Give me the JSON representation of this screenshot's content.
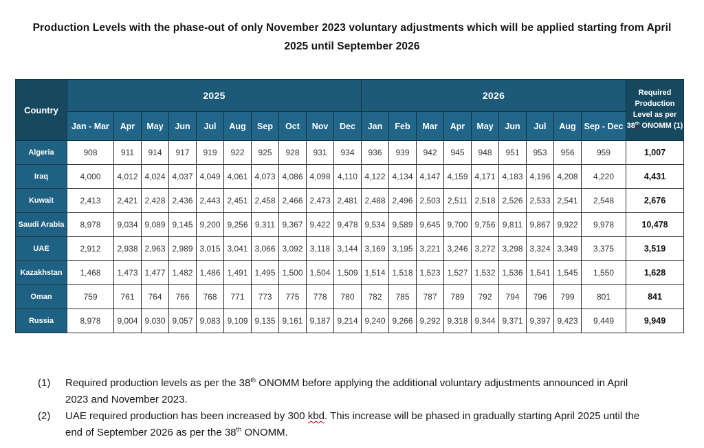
{
  "title": "Production Levels with the phase-out of only November 2023 voluntary adjustments which will be applied starting from April 2025 until September 2026",
  "colors": {
    "header_dark": "#16495f",
    "header_band": "#1d5a78",
    "header_month": "#216689",
    "row_label": "#1e6183",
    "squiggle": "#c00000"
  },
  "table": {
    "corner_label": "Country",
    "year_groups": [
      {
        "label": "2025",
        "months": [
          "Jan - Mar",
          "Apr",
          "May",
          "Jun",
          "Jul",
          "Aug",
          "Sep",
          "Oct",
          "Nov",
          "Dec"
        ]
      },
      {
        "label": "2026",
        "months": [
          "Jan",
          "Feb",
          "Mar",
          "Apr",
          "May",
          "Jun",
          "Jul",
          "Aug",
          "Sep - Dec"
        ]
      }
    ],
    "required_header_segments": [
      {
        "t": "Required Production Level as per "
      },
      {
        "t": "38"
      },
      {
        "t": "th",
        "s": "sup wavy"
      },
      {
        "t": " ONOMM (1)"
      }
    ],
    "rows": [
      {
        "country": "Algeria",
        "values": [
          "908",
          "911",
          "914",
          "917",
          "919",
          "922",
          "925",
          "928",
          "931",
          "934",
          "936",
          "939",
          "942",
          "945",
          "948",
          "951",
          "953",
          "956",
          "959"
        ],
        "required": "1,007"
      },
      {
        "country": "Iraq",
        "values": [
          "4,000",
          "4,012",
          "4,024",
          "4,037",
          "4,049",
          "4,061",
          "4,073",
          "4,086",
          "4,098",
          "4,110",
          "4,122",
          "4,134",
          "4,147",
          "4,159",
          "4,171",
          "4,183",
          "4,196",
          "4,208",
          "4,220"
        ],
        "required": "4,431"
      },
      {
        "country": "Kuwait",
        "values": [
          "2,413",
          "2,421",
          "2,428",
          "2,436",
          "2,443",
          "2,451",
          "2,458",
          "2,466",
          "2,473",
          "2,481",
          "2,488",
          "2,496",
          "2,503",
          "2,511",
          "2,518",
          "2,526",
          "2,533",
          "2,541",
          "2,548"
        ],
        "required": "2,676"
      },
      {
        "country": "Saudi Arabia",
        "values": [
          "8,978",
          "9,034",
          "9,089",
          "9,145",
          "9,200",
          "9,256",
          "9,311",
          "9,367",
          "9,422",
          "9,478",
          "9,534",
          "9,589",
          "9,645",
          "9,700",
          "9,756",
          "9,811",
          "9,867",
          "9,922",
          "9,978"
        ],
        "required": "10,478"
      },
      {
        "country": "UAE",
        "values": [
          "2,912",
          "2,938",
          "2,963",
          "2,989",
          "3,015",
          "3,041",
          "3,066",
          "3,092",
          "3,118",
          "3,144",
          "3,169",
          "3,195",
          "3,221",
          "3,246",
          "3,272",
          "3,298",
          "3,324",
          "3,349",
          "3,375"
        ],
        "required": "3,519"
      },
      {
        "country": "Kazakhstan",
        "values": [
          "1,468",
          "1,473",
          "1,477",
          "1,482",
          "1,486",
          "1,491",
          "1,495",
          "1,500",
          "1,504",
          "1,509",
          "1,514",
          "1,518",
          "1,523",
          "1,527",
          "1,532",
          "1,536",
          "1,541",
          "1,545",
          "1,550"
        ],
        "required": "1,628"
      },
      {
        "country": "Oman",
        "values": [
          "759",
          "761",
          "764",
          "766",
          "768",
          "771",
          "773",
          "775",
          "778",
          "780",
          "782",
          "785",
          "787",
          "789",
          "792",
          "794",
          "796",
          "799",
          "801"
        ],
        "required": "841"
      },
      {
        "country": "Russia",
        "values": [
          "8,978",
          "9,004",
          "9,030",
          "9,057",
          "9,083",
          "9,109",
          "9,135",
          "9,161",
          "9,187",
          "9,214",
          "9,240",
          "9,266",
          "9,292",
          "9,318",
          "9,344",
          "9,371",
          "9,397",
          "9,423",
          "9,449"
        ],
        "required": "9,949"
      }
    ]
  },
  "footnotes": [
    {
      "num": "(1)",
      "segments": [
        {
          "t": "Required production levels as per the 38"
        },
        {
          "t": "th",
          "s": "sup"
        },
        {
          "t": " ONOMM before applying the additional voluntary adjustments announced in April 2023 and November 2023."
        }
      ]
    },
    {
      "num": "(2)",
      "segments": [
        {
          "t": "UAE required production has been increased by 300 "
        },
        {
          "t": "kbd",
          "s": "wavy"
        },
        {
          "t": ". This increase will be phased in gradually starting April 2025 until the end of September 2026 as per the 38"
        },
        {
          "t": "th",
          "s": "sup"
        },
        {
          "t": " ONOMM."
        }
      ]
    }
  ]
}
